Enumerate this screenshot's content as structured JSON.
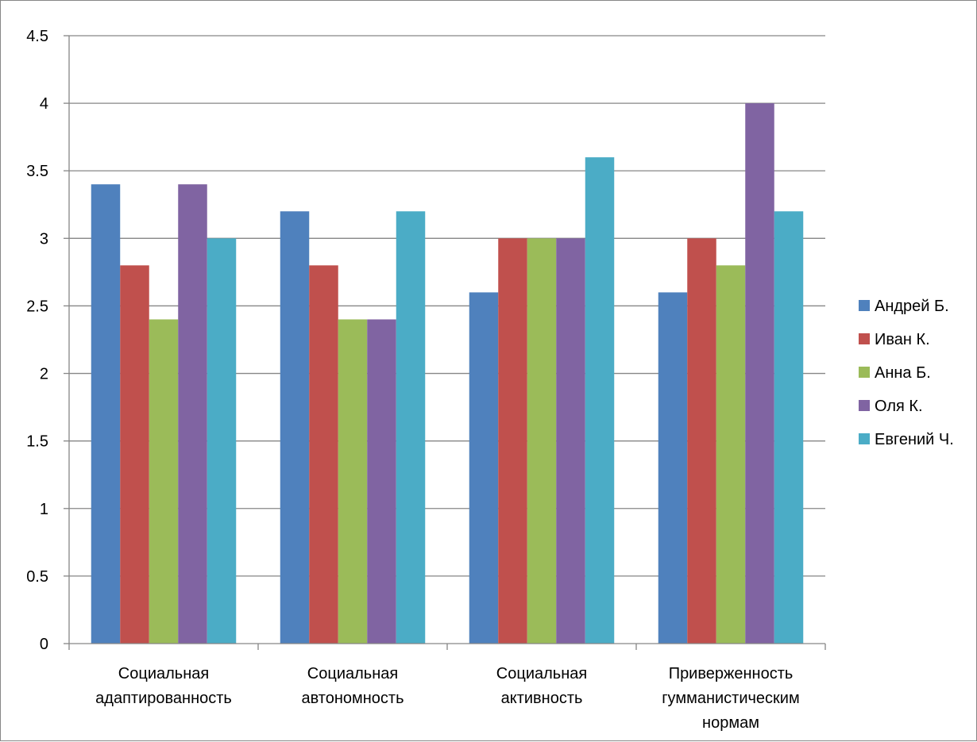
{
  "chart_data": {
    "type": "bar",
    "categories": [
      [
        "Социальная",
        "адаптированность"
      ],
      [
        "Социальная",
        "автономность"
      ],
      [
        "Социальная",
        "активность"
      ],
      [
        "Приверженность",
        "гумманистическим",
        "нормам"
      ]
    ],
    "series": [
      {
        "name": "Андрей Б.",
        "color": "#4F81BD",
        "values": [
          3.4,
          3.2,
          2.6,
          2.6
        ]
      },
      {
        "name": "Иван К.",
        "color": "#C0504D",
        "values": [
          2.8,
          2.8,
          3.0,
          3.0
        ]
      },
      {
        "name": "Анна Б.",
        "color": "#9BBB59",
        "values": [
          2.4,
          2.4,
          3.0,
          2.8
        ]
      },
      {
        "name": "Оля К.",
        "color": "#8064A2",
        "values": [
          3.4,
          2.4,
          3.0,
          4.0
        ]
      },
      {
        "name": "Евгений Ч.",
        "color": "#4BACC6",
        "values": [
          3.0,
          3.2,
          3.6,
          3.2
        ]
      }
    ],
    "y_ticks": [
      "0",
      "0.5",
      "1",
      "1.5",
      "2",
      "2.5",
      "3",
      "3.5",
      "4",
      "4.5"
    ],
    "ylim": [
      0,
      4.5
    ],
    "grid": true,
    "legend_position": "right"
  }
}
